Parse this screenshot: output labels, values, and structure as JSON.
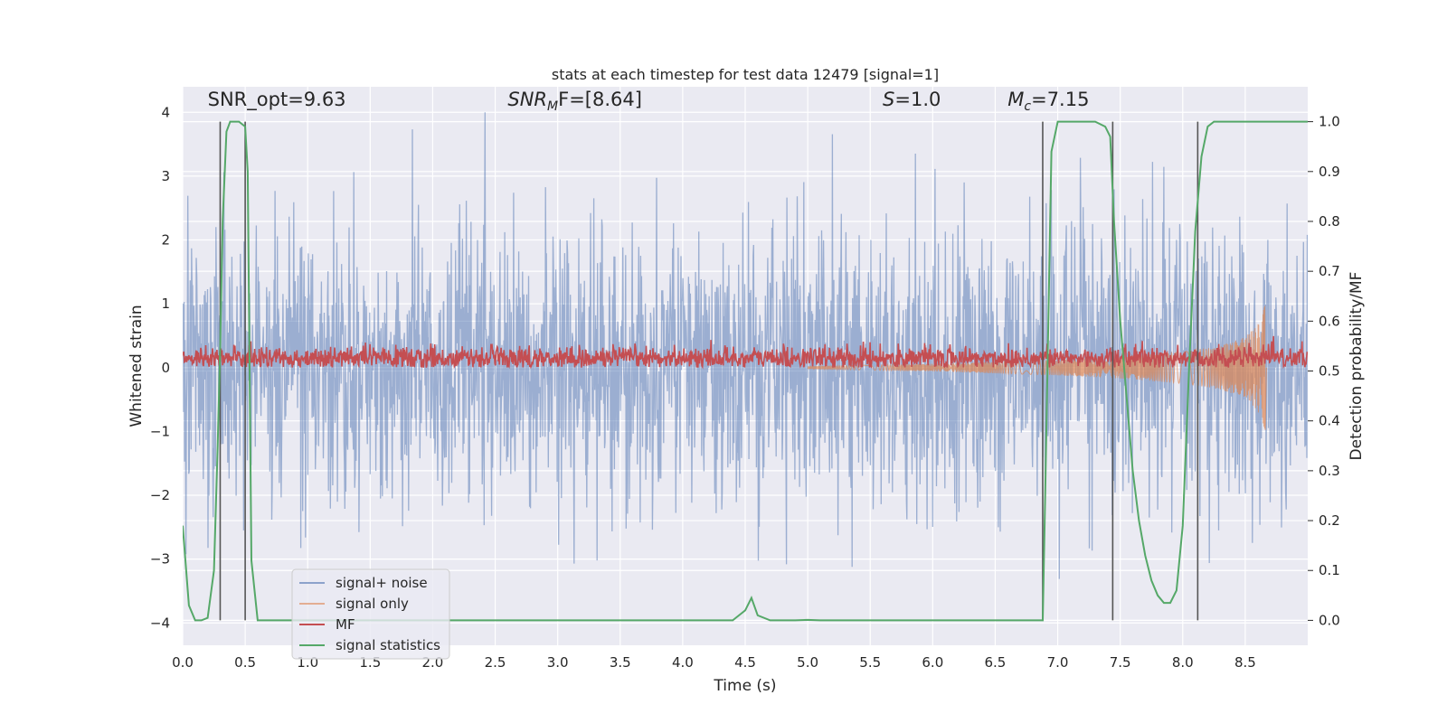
{
  "chart_data": {
    "type": "line",
    "title": "stats at each timestep for test data 12479 [signal=1]",
    "xlabel": "Time (s)",
    "ylabel_left": "Whitened strain",
    "ylabel_right": "Detection probability/MF",
    "xlim": [
      0.0,
      9.0
    ],
    "ylim_left": [
      -4.35,
      4.4
    ],
    "ylim_right": [
      -0.05,
      1.07
    ],
    "x_ticks": [
      "0.0",
      "0.5",
      "1.0",
      "1.5",
      "2.0",
      "2.5",
      "3.0",
      "3.5",
      "4.0",
      "4.5",
      "5.0",
      "5.5",
      "6.0",
      "6.5",
      "7.0",
      "7.5",
      "8.0",
      "8.5"
    ],
    "y_ticks_left": [
      "−4",
      "−3",
      "−2",
      "−1",
      "0",
      "1",
      "2",
      "3",
      "4"
    ],
    "y_ticks_right": [
      "0.0",
      "0.1",
      "0.2",
      "0.3",
      "0.4",
      "0.5",
      "0.6",
      "0.7",
      "0.8",
      "0.9",
      "1.0"
    ],
    "grid": true,
    "legend_position": "lower-left",
    "annotations": [
      {
        "prefix": "SNR_opt",
        "sub": "",
        "suffix": "=9.63",
        "italic": false,
        "x": 0.2,
        "y": 4.1
      },
      {
        "prefix": "SNR",
        "sub": "M",
        "suffix": "F=[8.64]",
        "italic": true,
        "x": 2.6,
        "y": 4.1
      },
      {
        "prefix": "S",
        "sub": "",
        "suffix": "=1.0",
        "italic": true,
        "x": 5.6,
        "y": 4.1
      },
      {
        "prefix": "M",
        "sub": "c",
        "suffix": "=7.15",
        "italic": true,
        "x": 6.6,
        "y": 4.1
      }
    ],
    "vertical_lines": [
      0.3,
      0.5,
      6.88,
      7.44,
      8.12
    ],
    "series": [
      {
        "name": "signal+ noise",
        "axis": "left",
        "color": "#4c72b0",
        "style": "noise",
        "envelope_approx": 2.3,
        "max": 4.0,
        "min": -3.9
      },
      {
        "name": "signal only",
        "axis": "left",
        "color": "#dd8452",
        "style": "chirp",
        "x": [
          5.0,
          6.0,
          7.0,
          7.5,
          8.0,
          8.3,
          8.5,
          8.6,
          8.66
        ],
        "envelope": [
          0.02,
          0.06,
          0.12,
          0.17,
          0.25,
          0.34,
          0.48,
          0.68,
          0.98
        ]
      },
      {
        "name": "MF",
        "axis": "left",
        "color": "#c44e52",
        "style": "positive-noise",
        "mean": 0.15,
        "max": 0.95
      },
      {
        "name": "signal statistics",
        "axis": "right",
        "color": "#55a868",
        "style": "line",
        "x": [
          0.0,
          0.05,
          0.1,
          0.15,
          0.2,
          0.25,
          0.28,
          0.3,
          0.32,
          0.35,
          0.38,
          0.4,
          0.45,
          0.5,
          0.52,
          0.55,
          0.6,
          0.65,
          0.8,
          1.0,
          2.0,
          3.0,
          4.0,
          4.4,
          4.45,
          4.5,
          4.55,
          4.6,
          4.7,
          4.8,
          4.9,
          5.0,
          5.1,
          5.2,
          6.0,
          6.8,
          6.88,
          6.9,
          6.95,
          7.0,
          7.1,
          7.3,
          7.38,
          7.42,
          7.45,
          7.5,
          7.55,
          7.6,
          7.65,
          7.7,
          7.75,
          7.8,
          7.85,
          7.9,
          7.95,
          8.0,
          8.05,
          8.1,
          8.15,
          8.2,
          8.25,
          8.3,
          8.5,
          8.65,
          8.8,
          9.0
        ],
        "y": [
          0.19,
          0.03,
          0.0,
          0.0,
          0.005,
          0.1,
          0.35,
          0.55,
          0.8,
          0.98,
          1.0,
          1.0,
          1.0,
          0.99,
          0.9,
          0.12,
          0.0,
          0.0,
          0.0,
          0.0,
          0.0,
          0.0,
          0.0,
          0.0,
          0.01,
          0.02,
          0.045,
          0.01,
          0.0,
          0.0,
          0.0,
          0.001,
          0.0,
          0.0,
          0.0,
          0.0,
          0.0,
          0.25,
          0.94,
          1.0,
          1.0,
          1.0,
          0.99,
          0.97,
          0.8,
          0.6,
          0.45,
          0.3,
          0.2,
          0.13,
          0.08,
          0.05,
          0.035,
          0.035,
          0.06,
          0.19,
          0.5,
          0.78,
          0.93,
          0.99,
          1.0,
          1.0,
          1.0,
          1.0,
          1.0,
          1.0
        ]
      }
    ]
  }
}
